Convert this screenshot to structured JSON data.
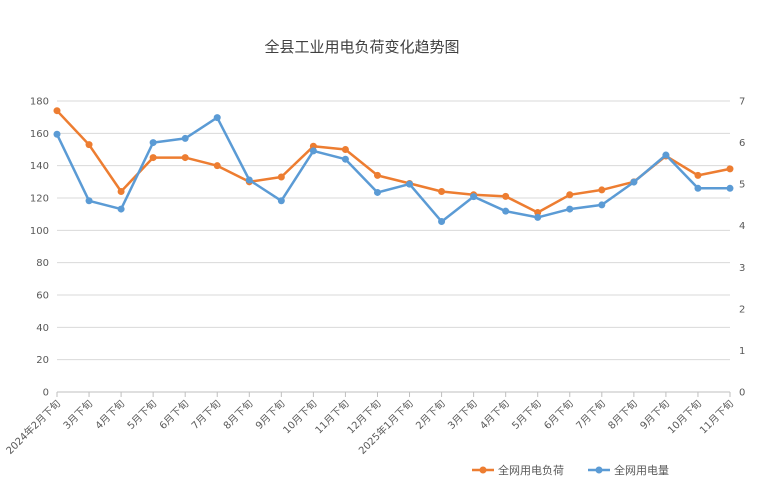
{
  "chart_data": {
    "type": "line",
    "title": "全县工业用电负荷变化趋势图",
    "categories": [
      "2024年2月下旬",
      "3月下旬",
      "4月下旬",
      "5月下旬",
      "6月下旬",
      "7月下旬",
      "8月下旬",
      "9月下旬",
      "10月下旬",
      "11月下旬",
      "12月下旬",
      "2025年1月下旬",
      "2月下旬",
      "3月下旬",
      "4月下旬",
      "5月下旬",
      "6月下旬",
      "7月下旬",
      "8月下旬",
      "9月下旬",
      "10月下旬",
      "11月下旬"
    ],
    "series": [
      {
        "name": "全网用电负荷",
        "axis": "left",
        "color": "#ED7D31",
        "values": [
          174,
          153,
          124,
          145,
          145,
          140,
          130,
          133,
          152,
          150,
          134,
          129,
          124,
          122,
          121,
          111,
          122,
          125,
          130,
          146,
          134,
          138
        ]
      },
      {
        "name": "全网用电量",
        "axis": "right",
        "color": "#5B9BD5",
        "values": [
          6.2,
          4.6,
          4.4,
          6.0,
          6.1,
          6.6,
          5.1,
          4.6,
          5.8,
          5.6,
          4.8,
          5.0,
          4.1,
          4.7,
          4.35,
          4.2,
          4.4,
          4.5,
          5.05,
          5.7,
          4.9,
          4.9
        ]
      }
    ],
    "yleft": {
      "lim": [
        0,
        180
      ],
      "ticks": [
        0,
        20,
        40,
        60,
        80,
        100,
        120,
        140,
        160,
        180
      ]
    },
    "yright": {
      "lim": [
        0,
        7
      ],
      "ticks": [
        0,
        1,
        2,
        3,
        4,
        5,
        6,
        7
      ]
    },
    "grid": true,
    "legend": "bottom-right"
  }
}
